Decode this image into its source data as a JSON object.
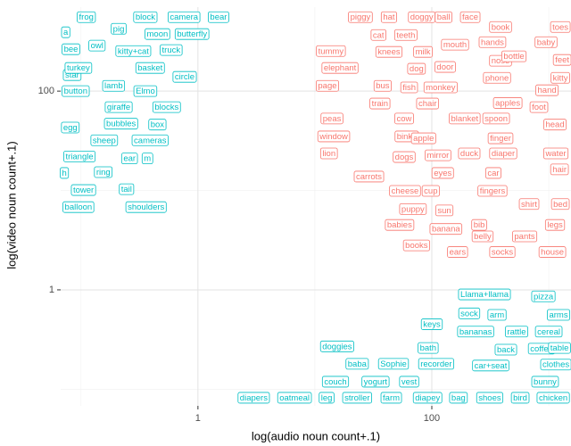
{
  "chart_data": {
    "type": "label_scatter",
    "xlabel": "log(audio noun count+.1)",
    "ylabel": "log(video noun count+.1)",
    "xscale": "log",
    "yscale": "log",
    "xlim": [
      0.067,
      1550
    ],
    "ylim": [
      0.068,
      700
    ],
    "xticks": [
      1,
      100
    ],
    "yticks": [
      1,
      100
    ],
    "x_minor_grid": [
      0.1,
      10,
      1000
    ],
    "y_minor_grid": [
      0.1,
      10
    ],
    "grid": true,
    "series": [
      {
        "color": "#00BFC4",
        "labels": [
          "frog",
          "a",
          "pig",
          "block",
          "camera",
          "bear",
          "moon",
          "butterfly",
          "bee",
          "owl",
          "kitty+cat",
          "truck",
          "star",
          "turkey",
          "basket",
          "circle",
          "button",
          "lamb",
          "Elmo",
          "giraffe",
          "blocks",
          "egg",
          "bubbles",
          "box",
          "sheep",
          "cameras",
          "triangle",
          "ear",
          "m",
          "h",
          "ring",
          "tower",
          "tail",
          "balloon",
          "shoulders",
          "Llama+llama",
          "pizza",
          "sock",
          "arm",
          "arms",
          "keys",
          "bananas",
          "rattle",
          "cereal",
          "doggies",
          "bath",
          "back",
          "coffee",
          "table",
          "baba",
          "Sophie",
          "recorder",
          "car+seat",
          "clothes",
          "couch",
          "yogurt",
          "vest",
          "bunny",
          "diapers",
          "oatmeal",
          "leg",
          "stroller",
          "farm",
          "diapey",
          "bag",
          "shoes",
          "bird",
          "chicken"
        ],
        "x": [
          0.111,
          0.074,
          0.21,
          0.355,
          0.76,
          1.5,
          0.45,
          0.89,
          0.082,
          0.137,
          0.28,
          0.59,
          0.084,
          0.095,
          0.39,
          0.77,
          0.09,
          0.19,
          0.355,
          0.21,
          0.54,
          0.081,
          0.22,
          0.45,
          0.158,
          0.39,
          0.097,
          0.26,
          0.37,
          0.072,
          0.155,
          0.105,
          0.245,
          0.095,
          0.36,
          282,
          900,
          209,
          361,
          1213,
          100,
          237,
          531,
          1000,
          15.5,
          93,
          430,
          869,
          1236,
          23,
          47,
          109,
          319,
          1151,
          15,
          33,
          64,
          931,
          3.0,
          6.7,
          12.6,
          23,
          45,
          92,
          169,
          313,
          570,
          1092
        ],
        "values": [
          555,
          391,
          424,
          555,
          555,
          555,
          375,
          375,
          264,
          287,
          253,
          259,
          145,
          171,
          171,
          139,
          100,
          113,
          100,
          69,
          69,
          43,
          47,
          46,
          32,
          32,
          22,
          21,
          21,
          15,
          15.3,
          10.1,
          10.3,
          6.8,
          6.8,
          0.9,
          0.86,
          0.58,
          0.56,
          0.56,
          0.45,
          0.38,
          0.38,
          0.38,
          0.27,
          0.26,
          0.25,
          0.256,
          0.26,
          0.18,
          0.18,
          0.18,
          0.173,
          0.177,
          0.119,
          0.119,
          0.119,
          0.119,
          0.082,
          0.082,
          0.082,
          0.082,
          0.082,
          0.082,
          0.082,
          0.082,
          0.082,
          0.082
        ]
      },
      {
        "color": "#F8766D",
        "labels": [
          "piggy",
          "hat",
          "doggy",
          "ball",
          "face",
          "book",
          "toes",
          "cat",
          "teeth",
          "hands",
          "baby",
          "tummy",
          "knees",
          "milk",
          "mouth",
          "nose",
          "bottle",
          "feet",
          "elephant",
          "dog",
          "door",
          "phone",
          "kitty",
          "page",
          "bus",
          "fish",
          "monkey",
          "hand",
          "train",
          "chair",
          "apples",
          "foot",
          "peas",
          "cow",
          "blanket",
          "spoon",
          "head",
          "window",
          "binky",
          "apple",
          "finger",
          "lion",
          "dogs",
          "mirror",
          "duck",
          "diaper",
          "water",
          "eyes",
          "car",
          "hair",
          "carrots",
          "cheese",
          "cup",
          "fingers",
          "shirt",
          "bed",
          "puppy",
          "sun",
          "babies",
          "bib",
          "legs",
          "banana",
          "belly",
          "pants",
          "books",
          "ears",
          "socks",
          "house"
        ],
        "x": [
          24.5,
          43,
          82,
          126,
          213,
          387,
          1257,
          35,
          60,
          330,
          948,
          13.7,
          43,
          84,
          158,
          387,
          504,
          1303,
          16.4,
          74,
          130,
          361,
          1257,
          12.8,
          38,
          64,
          119,
          966,
          36,
          92,
          446,
          824,
          14,
          58,
          191,
          355,
          1131,
          14.5,
          61,
          85,
          387,
          13.2,
          58,
          113,
          209,
          408,
          1151,
          124,
          336,
          1236,
          29,
          59,
          98,
          330,
          679,
          1257,
          69,
          128,
          53,
          254,
          1131,
          132,
          272,
          622,
          74,
          166,
          401,
          1074
        ],
        "values": [
          555,
          555,
          555,
          555,
          555,
          442,
          442,
          367,
          367,
          311,
          311,
          253,
          248,
          248,
          293,
          202,
          224,
          206,
          171,
          168,
          175,
          136,
          136,
          113,
          113,
          109,
          109,
          102,
          75,
          75,
          76,
          69,
          53,
          53,
          53,
          53,
          46,
          35,
          35,
          33.5,
          33.5,
          23.6,
          21.7,
          22.6,
          23.6,
          23.6,
          23.6,
          15,
          15,
          16.3,
          13.8,
          9.9,
          9.9,
          9.9,
          7.3,
          7.3,
          6.5,
          6.3,
          4.5,
          4.5,
          4.5,
          4.1,
          3.45,
          3.45,
          2.8,
          2.4,
          2.4,
          2.4
        ]
      }
    ]
  }
}
